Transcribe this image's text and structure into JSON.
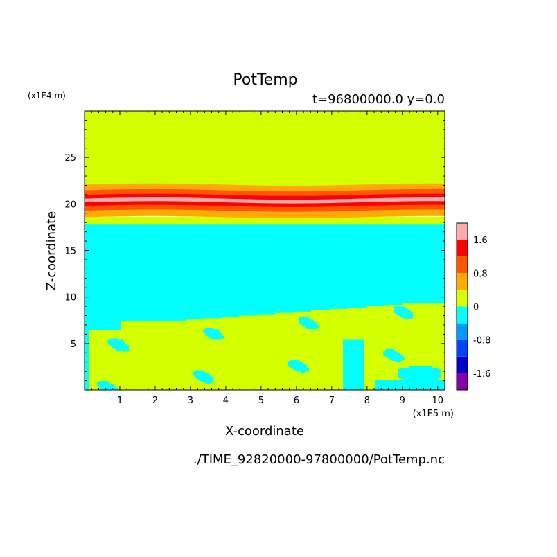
{
  "chart_data": {
    "type": "heatmap",
    "title": "PotTemp",
    "subtitle": "t=96800000.0 y=0.0",
    "xlabel": "X-coordinate",
    "ylabel": "Z-coordinate",
    "x_unit": "(x1E5 m)",
    "y_unit": "(x1E4 m)",
    "xlim": [
      0,
      10.2
    ],
    "ylim": [
      0,
      30
    ],
    "x_ticks": [
      1,
      2,
      3,
      4,
      5,
      6,
      7,
      8,
      9,
      10
    ],
    "y_ticks": [
      5,
      10,
      15,
      20,
      25
    ],
    "colorbar": {
      "range": [
        -2.0,
        2.0
      ],
      "step": 0.4,
      "tick_values": [
        1.6,
        0.8,
        0,
        -0.8,
        -1.6
      ],
      "tick_labels": [
        "1.6",
        "0.8",
        "0",
        "-0.8",
        "-1.6"
      ],
      "colors": [
        "#8800aa",
        "#0000cc",
        "#0044ff",
        "#0099ff",
        "#00ffff",
        "#d4ff00",
        "#ffaa00",
        "#ff5500",
        "#ff0000",
        "#ffaaaa"
      ]
    },
    "bands": [
      {
        "z_from": 0,
        "z_to": 17.8,
        "value": -0.2
      },
      {
        "z_from": 17.8,
        "z_to": 18.6,
        "value": 0.2
      },
      {
        "z_from": 18.6,
        "z_to": 19.3,
        "value": 0.6
      },
      {
        "z_from": 19.3,
        "z_to": 19.8,
        "value": 1.0
      },
      {
        "z_from": 19.8,
        "z_to": 20.2,
        "value": 1.4
      },
      {
        "z_from": 20.2,
        "z_to": 20.6,
        "value": 1.8
      },
      {
        "z_from": 20.6,
        "z_to": 21.0,
        "value": 1.4
      },
      {
        "z_from": 21.0,
        "z_to": 21.5,
        "value": 1.0
      },
      {
        "z_from": 21.5,
        "z_to": 22.1,
        "value": 0.6
      },
      {
        "z_from": 22.1,
        "z_to": 30,
        "value": 0.2
      }
    ]
  },
  "footer": {
    "source_file": "./TIME_92820000-97800000/PotTemp.nc"
  }
}
